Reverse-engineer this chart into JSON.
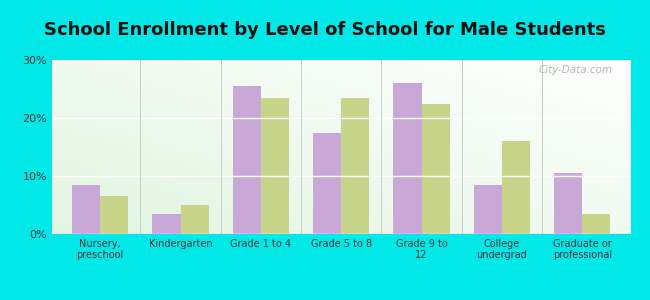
{
  "title": "School Enrollment by Level of School for Male Students",
  "categories": [
    "Nursery,\npreschool",
    "Kindergarten",
    "Grade 1 to 4",
    "Grade 5 to 8",
    "Grade 9 to\n12",
    "College\nundergrad",
    "Graduate or\nprofessional"
  ],
  "new_castle": [
    8.5,
    3.5,
    25.5,
    17.5,
    26.0,
    8.5,
    10.5
  ],
  "new_hampshire": [
    6.5,
    5.0,
    23.5,
    23.5,
    22.5,
    16.0,
    3.5
  ],
  "bar_color_nc": "#c9a8d8",
  "bar_color_nh": "#c8d48a",
  "background_color": "#00e8e8",
  "ylim": [
    0,
    30
  ],
  "yticks": [
    0,
    10,
    20,
    30
  ],
  "ytick_labels": [
    "0%",
    "10%",
    "20%",
    "30%"
  ],
  "title_fontsize": 13,
  "bar_width": 0.35,
  "watermark": "City-Data.com"
}
